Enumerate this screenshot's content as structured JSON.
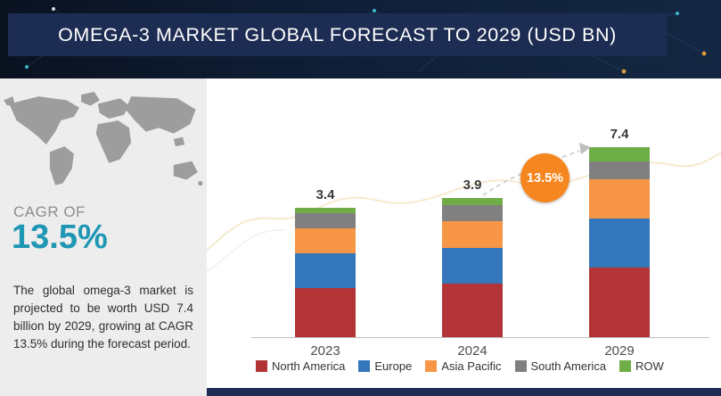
{
  "banner": {
    "title": "OMEGA-3 MARKET GLOBAL FORECAST TO 2029 (USD BN)"
  },
  "sidebar": {
    "cagr_label": "CAGR OF",
    "cagr_value": "13.5%",
    "description": "The global omega-3 market is projected to be worth USD 7.4 billion by 2029, growing at CAGR 13.5% during the forecast period."
  },
  "growth_badge": "13.5%",
  "colors": {
    "banner_navy": "#1d2c52",
    "accent_teal": "#1f97b5",
    "badge_orange": "#f6861f",
    "sidebar_gray": "#ededed"
  },
  "chart_data": {
    "type": "bar",
    "stacked": true,
    "title": "OMEGA-3 MARKET GLOBAL FORECAST TO 2029 (USD BN)",
    "unit": "USD BN",
    "categories": [
      "2023",
      "2024",
      "2029"
    ],
    "totals": [
      "3.4",
      "3.9",
      "7.4"
    ],
    "series": [
      {
        "name": "North America",
        "color": "#b23436",
        "values": [
          1.3,
          1.5,
          2.7
        ]
      },
      {
        "name": "Europe",
        "color": "#3577bb",
        "values": [
          0.9,
          1.0,
          1.9
        ]
      },
      {
        "name": "Asia Pacific",
        "color": "#f79646",
        "values": [
          0.65,
          0.75,
          1.55
        ]
      },
      {
        "name": "South America",
        "color": "#808080",
        "values": [
          0.4,
          0.45,
          0.7
        ]
      },
      {
        "name": "ROW",
        "color": "#6fad47",
        "values": [
          0.15,
          0.2,
          0.55
        ]
      }
    ],
    "legend_position": "bottom",
    "annotation": "13.5% CAGR badge with dashed growth arrow between 2024 and 2029 bars",
    "ylim": [
      0,
      8
    ],
    "grid": false
  }
}
